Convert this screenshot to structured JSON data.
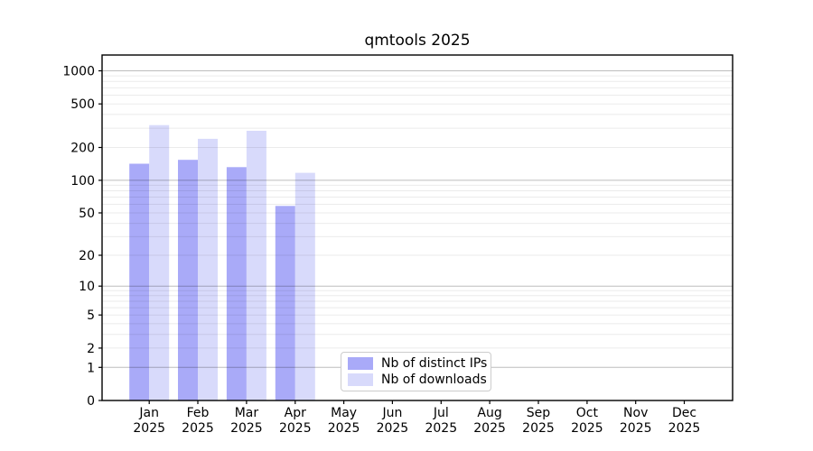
{
  "chart_data": {
    "type": "bar",
    "title": "qmtools 2025",
    "categories": [
      "Jan",
      "Feb",
      "Mar",
      "Apr",
      "May",
      "Jun",
      "Jul",
      "Aug",
      "Sep",
      "Oct",
      "Nov",
      "Dec"
    ],
    "year_label": "2025",
    "series": [
      {
        "name": "Nb of distinct IPs",
        "color": "#a9aaf8",
        "values": [
          142,
          154,
          132,
          58,
          0,
          0,
          0,
          0,
          0,
          0,
          0,
          0
        ]
      },
      {
        "name": "Nb of downloads",
        "color": "#d8dafb",
        "values": [
          320,
          240,
          284,
          117,
          0,
          0,
          0,
          0,
          0,
          0,
          0,
          0
        ]
      }
    ],
    "yscale": "log(1+v)",
    "yticks": [
      0,
      1,
      2,
      5,
      10,
      20,
      50,
      100,
      200,
      500,
      1000
    ],
    "ylim": [
      0,
      1400
    ],
    "grid": true,
    "legend_position": "lower center",
    "colors": {
      "major_grid": "#bdbdbd",
      "minor_grid": "#ebebeb",
      "axis": "#000000",
      "text": "#000000",
      "background": "#ffffff"
    }
  }
}
